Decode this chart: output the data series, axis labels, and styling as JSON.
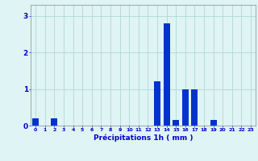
{
  "values": [
    0.2,
    0,
    0.2,
    0,
    0,
    0,
    0,
    0,
    0,
    0,
    0,
    0,
    0,
    1.2,
    2.8,
    0.15,
    1.0,
    1.0,
    0,
    0.15,
    0,
    0,
    0,
    0
  ],
  "bar_color": "#0033cc",
  "background_color": "#dff4f4",
  "grid_color": "#b0d8d8",
  "xlabel": "Précipitations 1h ( mm )",
  "xlabel_color": "#0000cc",
  "tick_color": "#0000cc",
  "ylabel_ticks": [
    0,
    1,
    2,
    3
  ],
  "ylim": [
    0,
    3.3
  ],
  "xlim": [
    -0.5,
    23.5
  ]
}
